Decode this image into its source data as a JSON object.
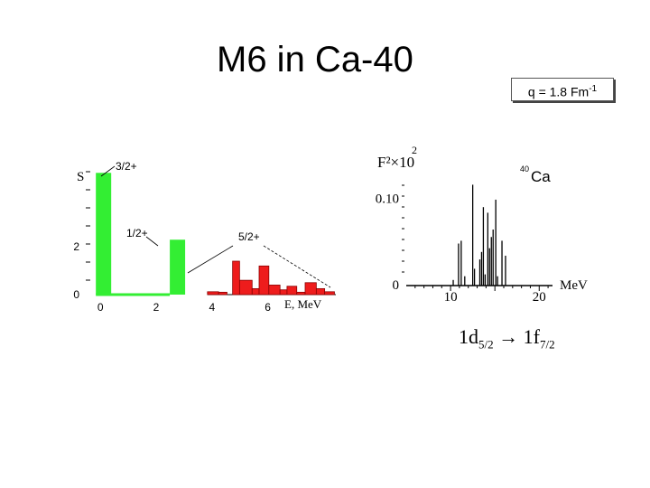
{
  "title": "M6 in Ca-40",
  "q_label": {
    "base": "q = 1.8 Fm",
    "exp": "-1"
  },
  "transition": {
    "from": "1d",
    "from_sub": "5/2",
    "arrow": "→",
    "to": "1f",
    "to_sub": "7/2"
  },
  "chart_data": [
    {
      "type": "bar",
      "name": "left",
      "ylabel": "S",
      "xlabel": "E, MeV",
      "x_ticks": [
        "0",
        "2",
        "4",
        "6"
      ],
      "x_tick_values": [
        0,
        2,
        4,
        6
      ],
      "y_ticks": [
        "2",
        "0"
      ],
      "y_tick_values": [
        2,
        0
      ],
      "xlim": [
        -0.2,
        8.6
      ],
      "ylim": [
        0,
        5.3
      ],
      "annotations": [
        "3/2+",
        "1/2+",
        "5/2+"
      ],
      "series": [
        {
          "color": "#33ee33",
          "bars": [
            {
              "x": 0.0,
              "w": 0.55,
              "y": 5.1
            },
            {
              "x": 2.65,
              "w": 0.55,
              "y": 2.3
            }
          ],
          "baseline_to": 2.65
        },
        {
          "color": "#ee1c1c",
          "bars": [
            {
              "x": 4.0,
              "w": 0.4,
              "y": 0.12
            },
            {
              "x": 4.4,
              "w": 0.3,
              "y": 0.1
            },
            {
              "x": 4.9,
              "w": 0.25,
              "y": 1.4
            },
            {
              "x": 5.15,
              "w": 0.45,
              "y": 0.6
            },
            {
              "x": 5.6,
              "w": 0.25,
              "y": 0.25
            },
            {
              "x": 5.85,
              "w": 0.35,
              "y": 1.2
            },
            {
              "x": 6.2,
              "w": 0.4,
              "y": 0.4
            },
            {
              "x": 6.6,
              "w": 0.25,
              "y": 0.2
            },
            {
              "x": 6.85,
              "w": 0.35,
              "y": 0.35
            },
            {
              "x": 7.2,
              "w": 0.3,
              "y": 0.1
            },
            {
              "x": 7.5,
              "w": 0.4,
              "y": 0.5
            },
            {
              "x": 7.9,
              "w": 0.3,
              "y": 0.25
            },
            {
              "x": 8.2,
              "w": 0.35,
              "y": 0.12
            }
          ]
        }
      ]
    },
    {
      "type": "bar",
      "name": "right",
      "ylabel": "F²×10",
      "ylabel_exp": "2",
      "xlabel": "MeV",
      "nucleus": {
        "mass": "40",
        "symbol": "Ca"
      },
      "x_ticks": [
        "10",
        "20"
      ],
      "x_tick_values": [
        10,
        20
      ],
      "y_ticks": [
        "0.10",
        "0"
      ],
      "y_tick_values": [
        0.1,
        0
      ],
      "xlim": [
        5,
        21.5
      ],
      "ylim": [
        0,
        0.12
      ],
      "lines": [
        {
          "x": 10.3,
          "y": 0.006
        },
        {
          "x": 10.9,
          "y": 0.045
        },
        {
          "x": 11.2,
          "y": 0.048
        },
        {
          "x": 11.6,
          "y": 0.01
        },
        {
          "x": 12.5,
          "y": 0.108
        },
        {
          "x": 12.7,
          "y": 0.018
        },
        {
          "x": 13.3,
          "y": 0.028
        },
        {
          "x": 13.5,
          "y": 0.036
        },
        {
          "x": 13.7,
          "y": 0.084
        },
        {
          "x": 13.9,
          "y": 0.012
        },
        {
          "x": 14.2,
          "y": 0.078
        },
        {
          "x": 14.4,
          "y": 0.04
        },
        {
          "x": 14.6,
          "y": 0.052
        },
        {
          "x": 14.8,
          "y": 0.06
        },
        {
          "x": 15.1,
          "y": 0.092
        },
        {
          "x": 15.3,
          "y": 0.01
        },
        {
          "x": 15.8,
          "y": 0.048
        },
        {
          "x": 16.2,
          "y": 0.032
        }
      ]
    }
  ]
}
